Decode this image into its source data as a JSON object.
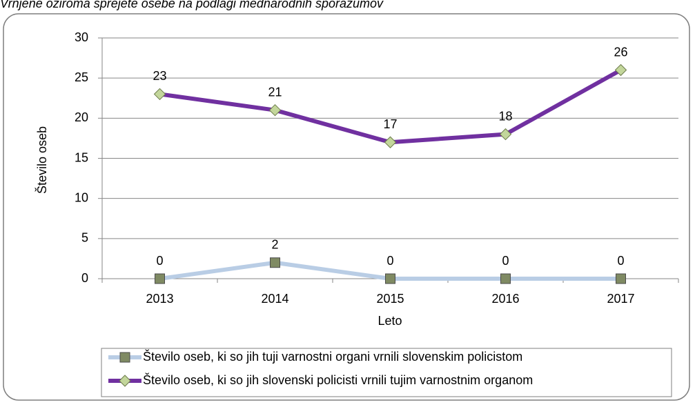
{
  "chart_data": {
    "type": "line",
    "title": "Vrnjene oziroma sprejete osebe na podlagi mednarodnih sporazumov",
    "x_label": "Leto",
    "y_label": "Število oseb",
    "categories": [
      "2013",
      "2014",
      "2015",
      "2016",
      "2017"
    ],
    "series": [
      {
        "name": "Število oseb, ki so jih tuji varnostni organi vrnili slovenskim policistom",
        "color": "#b9cde5",
        "marker_color": "#7f8a63",
        "values": [
          0,
          2,
          0,
          0,
          0
        ]
      },
      {
        "name": "Število oseb, ki so jih slovenski policisti vrnili tujim varnostnim organom",
        "color": "#7030a0",
        "marker_color": "#c3d69b",
        "values": [
          23,
          21,
          17,
          18,
          26
        ]
      }
    ],
    "ylim": [
      0,
      30
    ],
    "yticks": [
      0,
      5,
      10,
      15,
      20,
      25,
      30
    ],
    "grid": true
  }
}
